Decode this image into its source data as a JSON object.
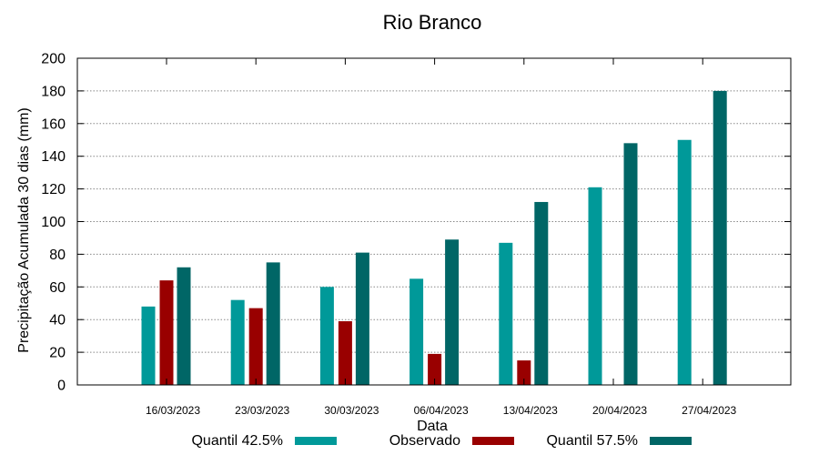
{
  "chart_data": {
    "type": "bar",
    "title": "Rio Branco",
    "xlabel": "Data",
    "ylabel": "Precipitação Acumulada 30 dias (mm)",
    "ylim": [
      0,
      200
    ],
    "yticks": [
      0,
      20,
      40,
      60,
      80,
      100,
      120,
      140,
      160,
      180,
      200
    ],
    "categories": [
      "16/03/2023",
      "23/03/2023",
      "30/03/2023",
      "06/04/2023",
      "13/04/2023",
      "20/04/2023",
      "27/04/2023"
    ],
    "series": [
      {
        "name": "Quantil 42.5%",
        "color": "#009999",
        "values": [
          48,
          52,
          60,
          65,
          87,
          121,
          150
        ]
      },
      {
        "name": "Observado",
        "color": "#990000",
        "values": [
          64,
          47,
          39,
          19,
          15,
          null,
          null
        ]
      },
      {
        "name": "Quantil 57.5%",
        "color": "#006666",
        "values": [
          72,
          75,
          81,
          89,
          112,
          148,
          180
        ]
      }
    ],
    "grid": true,
    "legend_position": "bottom"
  }
}
